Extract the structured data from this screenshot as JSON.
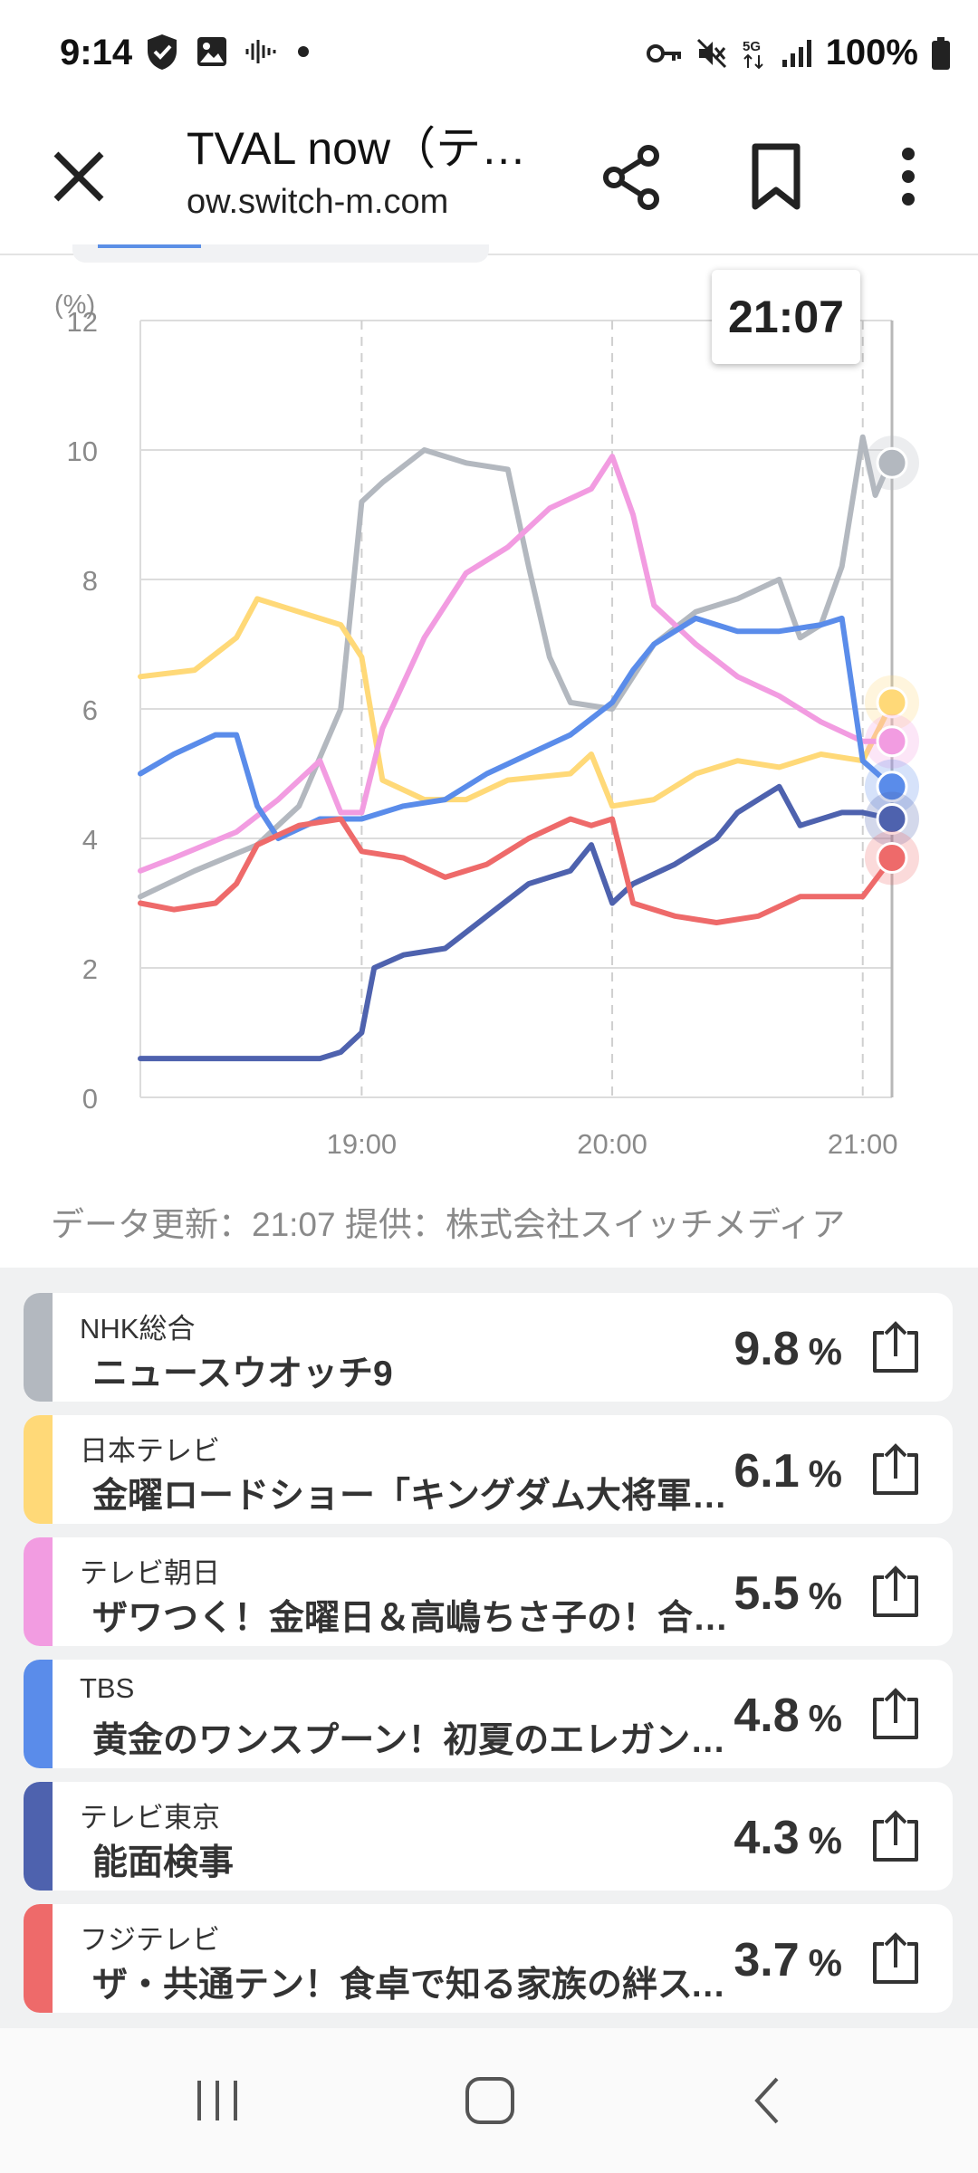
{
  "status_bar": {
    "time": "9:14",
    "battery": "100%",
    "network": "5G",
    "icons": [
      "shield-icon",
      "gallery-icon",
      "audio-wave-icon",
      "dot-icon",
      "key-icon",
      "mute-icon",
      "network-5g-icon",
      "signal-icon",
      "battery-icon"
    ]
  },
  "app_bar": {
    "title": "TVAL now（テ…",
    "url": "ow.switch-m.com",
    "close_icon": "close-icon",
    "share_icon": "share-icon",
    "bookmark_icon": "bookmark-icon",
    "more_icon": "more-vert-icon"
  },
  "chart_data": {
    "type": "line",
    "ylabel": "(%)",
    "ylim": [
      0,
      12
    ],
    "yticks": [
      "0",
      "2",
      "4",
      "6",
      "8",
      "10",
      "12"
    ],
    "xticks": [
      "19:00",
      "20:00",
      "21:00"
    ],
    "xlim": [
      "18:07",
      "21:07"
    ],
    "tooltip": "21:07",
    "grid": true,
    "series": [
      {
        "name": "NHK総合",
        "color": "#b3b8bf",
        "x": [
          "18:07",
          "18:20",
          "18:35",
          "18:45",
          "18:55",
          "19:00",
          "19:05",
          "19:15",
          "19:25",
          "19:35",
          "19:40",
          "19:45",
          "19:50",
          "20:00",
          "20:10",
          "20:20",
          "20:30",
          "20:40",
          "20:45",
          "20:50",
          "20:55",
          "21:00",
          "21:03",
          "21:05",
          "21:07"
        ],
        "y": [
          3.1,
          3.5,
          3.9,
          4.5,
          6.0,
          9.2,
          9.5,
          10.0,
          9.8,
          9.7,
          8.2,
          6.8,
          6.1,
          6.0,
          7.0,
          7.5,
          7.7,
          8.0,
          7.1,
          7.3,
          8.2,
          10.2,
          9.3,
          9.6,
          9.8
        ]
      },
      {
        "name": "日本テレビ",
        "color": "#ffd978",
        "x": [
          "18:07",
          "18:20",
          "18:30",
          "18:35",
          "18:45",
          "18:55",
          "19:00",
          "19:05",
          "19:15",
          "19:25",
          "19:35",
          "19:50",
          "19:55",
          "20:00",
          "20:10",
          "20:20",
          "20:30",
          "20:40",
          "20:50",
          "21:00",
          "21:07"
        ],
        "y": [
          6.5,
          6.6,
          7.1,
          7.7,
          7.5,
          7.3,
          6.8,
          4.9,
          4.6,
          4.6,
          4.9,
          5.0,
          5.3,
          4.5,
          4.6,
          5.0,
          5.2,
          5.1,
          5.3,
          5.2,
          6.1
        ]
      },
      {
        "name": "テレビ朝日",
        "color": "#f29ce1",
        "x": [
          "18:07",
          "18:15",
          "18:30",
          "18:40",
          "18:50",
          "18:55",
          "19:00",
          "19:05",
          "19:15",
          "19:25",
          "19:35",
          "19:45",
          "19:55",
          "20:00",
          "20:05",
          "20:10",
          "20:20",
          "20:30",
          "20:40",
          "20:50",
          "21:00",
          "21:07"
        ],
        "y": [
          3.5,
          3.7,
          4.1,
          4.6,
          5.2,
          4.4,
          4.4,
          5.7,
          7.1,
          8.1,
          8.5,
          9.1,
          9.4,
          9.9,
          9.0,
          7.6,
          7.0,
          6.5,
          6.2,
          5.8,
          5.5,
          5.5
        ]
      },
      {
        "name": "TBS",
        "color": "#5a8cea",
        "x": [
          "18:07",
          "18:15",
          "18:25",
          "18:30",
          "18:35",
          "18:40",
          "18:50",
          "19:00",
          "19:10",
          "19:20",
          "19:30",
          "19:40",
          "19:50",
          "20:00",
          "20:05",
          "20:10",
          "20:20",
          "20:30",
          "20:40",
          "20:50",
          "20:55",
          "21:00",
          "21:07"
        ],
        "y": [
          5.0,
          5.3,
          5.6,
          5.6,
          4.5,
          4.0,
          4.3,
          4.3,
          4.5,
          4.6,
          5.0,
          5.3,
          5.6,
          6.1,
          6.6,
          7.0,
          7.4,
          7.2,
          7.2,
          7.3,
          7.4,
          5.2,
          4.8
        ]
      },
      {
        "name": "テレビ東京",
        "color": "#4e62ae",
        "x": [
          "18:07",
          "18:20",
          "18:35",
          "18:50",
          "18:55",
          "19:00",
          "19:03",
          "19:10",
          "19:20",
          "19:30",
          "19:40",
          "19:50",
          "19:55",
          "20:00",
          "20:05",
          "20:15",
          "20:25",
          "20:30",
          "20:35",
          "20:40",
          "20:45",
          "20:55",
          "21:00",
          "21:07"
        ],
        "y": [
          0.6,
          0.6,
          0.6,
          0.6,
          0.7,
          1.0,
          2.0,
          2.2,
          2.3,
          2.8,
          3.3,
          3.5,
          3.9,
          3.0,
          3.3,
          3.6,
          4.0,
          4.4,
          4.6,
          4.8,
          4.2,
          4.4,
          4.4,
          4.3
        ]
      },
      {
        "name": "フジテレビ",
        "color": "#ee6a6a",
        "x": [
          "18:07",
          "18:15",
          "18:25",
          "18:30",
          "18:35",
          "18:45",
          "18:55",
          "19:00",
          "19:10",
          "19:20",
          "19:30",
          "19:40",
          "19:50",
          "19:55",
          "20:00",
          "20:05",
          "20:15",
          "20:25",
          "20:35",
          "20:45",
          "20:55",
          "21:00",
          "21:07"
        ],
        "y": [
          3.0,
          2.9,
          3.0,
          3.3,
          3.9,
          4.2,
          4.3,
          3.8,
          3.7,
          3.4,
          3.6,
          4.0,
          4.3,
          4.2,
          4.3,
          3.0,
          2.8,
          2.7,
          2.8,
          3.1,
          3.1,
          3.1,
          3.7
        ]
      }
    ]
  },
  "credit": "データ更新：21:07  提供：株式会社スイッチメディア",
  "channels": [
    {
      "station": "NHK総合",
      "program": "ニュースウオッチ9",
      "rating": "9.8",
      "unit": "%",
      "color": "#b3b8bf"
    },
    {
      "station": "日本テレビ",
      "program": "金曜ロードショー「キングダム大将軍の帰還」",
      "rating": "6.1",
      "unit": "%",
      "color": "#ffd978"
    },
    {
      "station": "テレビ朝日",
      "program": "ザワつく！金曜日＆高嶋ちさ子の！合体スペシャル",
      "rating": "5.5",
      "unit": "%",
      "color": "#f29ce1"
    },
    {
      "station": "TBS",
      "program": "黄金のワンスプーン！初夏のエレガントスペシャル",
      "rating": "4.8",
      "unit": "%",
      "color": "#5a8cea"
    },
    {
      "station": "テレビ東京",
      "program": "能面検事",
      "rating": "4.3",
      "unit": "%",
      "color": "#4e62ae"
    },
    {
      "station": "フジテレビ",
      "program": "ザ・共通テン！食卓で知る家族の絆スペシャル",
      "rating": "3.7",
      "unit": "%",
      "color": "#ee6a6a"
    }
  ],
  "nav_bar": {
    "recents_icon": "recents-icon",
    "home_icon": "home-icon",
    "back_icon": "back-icon"
  }
}
